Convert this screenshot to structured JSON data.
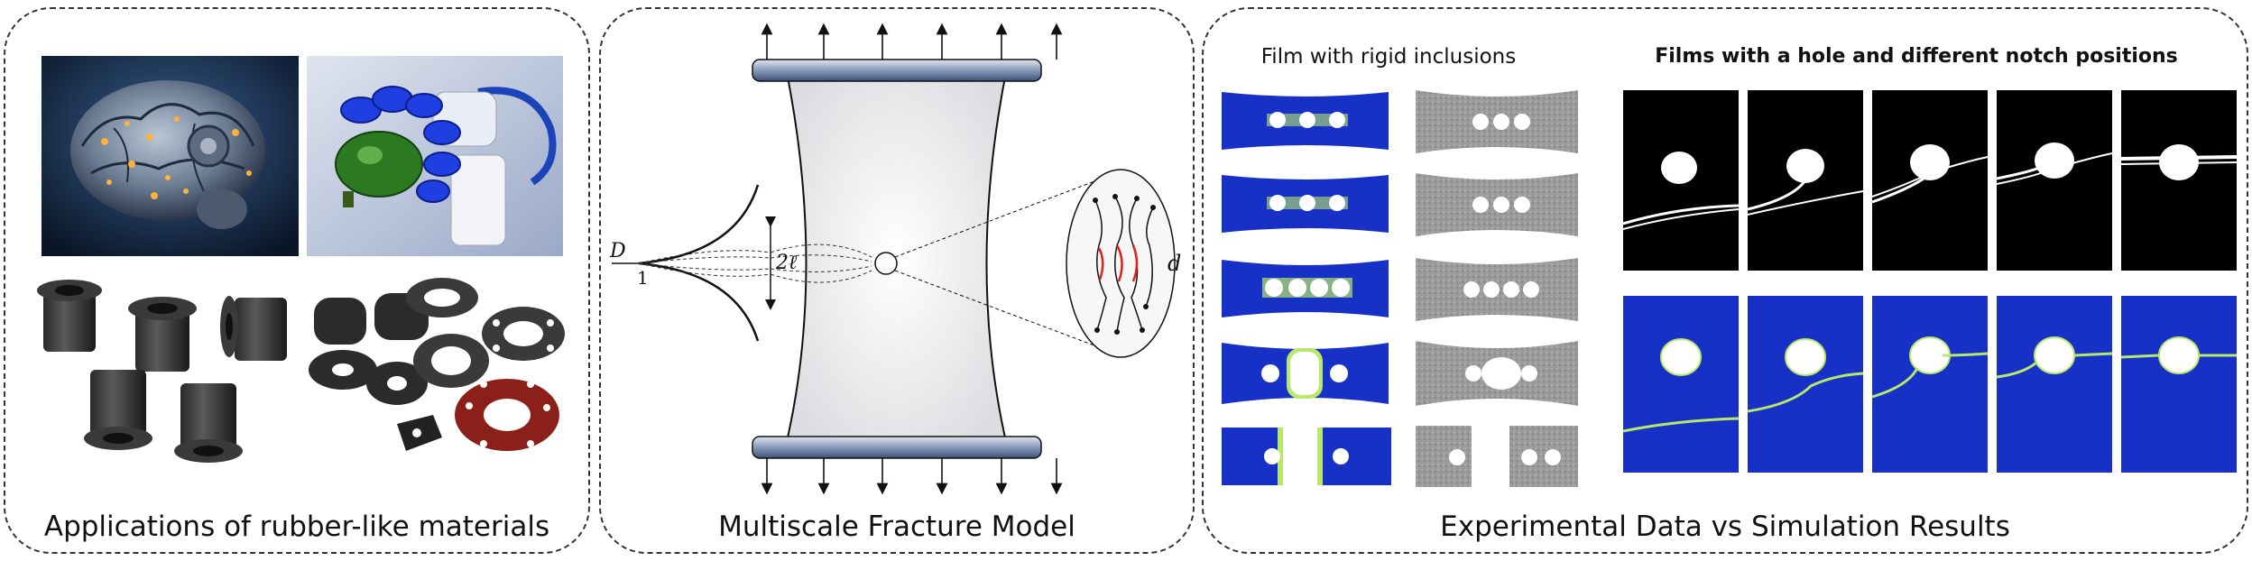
{
  "panels": {
    "applications": {
      "caption": "Applications of rubber-like materials"
    },
    "model": {
      "caption": "Multiscale Fracture Model",
      "labels": {
        "D": "D",
        "one": "1",
        "two_ell": "2ℓ",
        "d": "d"
      }
    },
    "experiments": {
      "caption": "Experimental Data vs Simulation Results",
      "subtitle_left": "Film with rigid inclusions",
      "subtitle_right": "Films with a hole and different notch positions"
    }
  },
  "colors": {
    "sim_blue": "#1730c6",
    "crack_green": "#b8e86a",
    "grip_dark": "#3c4f78",
    "grip_light": "#dfe6f1"
  }
}
